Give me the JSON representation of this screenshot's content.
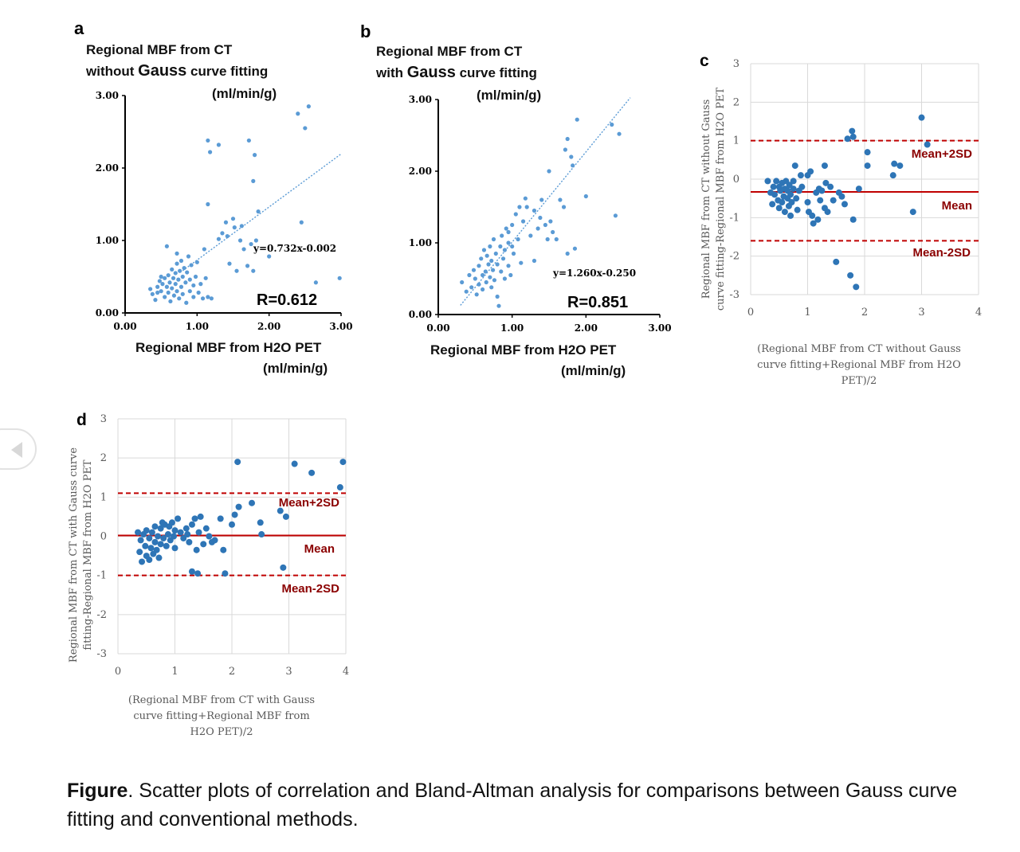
{
  "chart_data": [
    {
      "id": "a",
      "type": "scatter",
      "panel_label": "a",
      "title_lines": [
        "Regional MBF from CT",
        "without",
        "Gauss",
        "curve fitting",
        "(ml/min/g)"
      ],
      "xlabel_lines": [
        "Regional MBF from H2O PET",
        "(ml/min/g)"
      ],
      "xlim": [
        0,
        3
      ],
      "ylim": [
        0,
        3
      ],
      "xticks": [
        "0.00",
        "1.00",
        "2.00",
        "3.00"
      ],
      "yticks": [
        "0.00",
        "1.00",
        "2.00",
        "3.00"
      ],
      "equation": "y=0.732x-0.002",
      "r_label": "R=0.612",
      "trendline": {
        "slope": 0.732,
        "intercept": -0.002,
        "x_range": [
          0.8,
          3.0
        ]
      },
      "color": "#5b9bd5",
      "points": [
        [
          0.35,
          0.33
        ],
        [
          0.38,
          0.26
        ],
        [
          0.42,
          0.18
        ],
        [
          0.45,
          0.36
        ],
        [
          0.48,
          0.44
        ],
        [
          0.5,
          0.3
        ],
        [
          0.52,
          0.4
        ],
        [
          0.55,
          0.22
        ],
        [
          0.55,
          0.48
        ],
        [
          0.58,
          0.36
        ],
        [
          0.6,
          0.28
        ],
        [
          0.6,
          0.52
        ],
        [
          0.62,
          0.42
        ],
        [
          0.63,
          0.16
        ],
        [
          0.65,
          0.34
        ],
        [
          0.65,
          0.6
        ],
        [
          0.67,
          0.48
        ],
        [
          0.68,
          0.24
        ],
        [
          0.7,
          0.4
        ],
        [
          0.7,
          0.55
        ],
        [
          0.72,
          0.3
        ],
        [
          0.72,
          0.68
        ],
        [
          0.74,
          0.46
        ],
        [
          0.75,
          0.2
        ],
        [
          0.76,
          0.58
        ],
        [
          0.78,
          0.36
        ],
        [
          0.78,
          0.72
        ],
        [
          0.8,
          0.5
        ],
        [
          0.8,
          0.26
        ],
        [
          0.82,
          0.62
        ],
        [
          0.84,
          0.42
        ],
        [
          0.85,
          0.14
        ],
        [
          0.86,
          0.56
        ],
        [
          0.88,
          0.78
        ],
        [
          0.9,
          0.3
        ],
        [
          0.9,
          0.46
        ],
        [
          0.92,
          0.66
        ],
        [
          0.95,
          0.38
        ],
        [
          0.95,
          0.22
        ],
        [
          0.98,
          0.5
        ],
        [
          1.0,
          0.7
        ],
        [
          1.02,
          0.28
        ],
        [
          1.05,
          0.4
        ],
        [
          1.08,
          0.2
        ],
        [
          1.1,
          0.88
        ],
        [
          1.12,
          0.48
        ],
        [
          1.15,
          0.22
        ],
        [
          1.2,
          0.2
        ],
        [
          0.58,
          0.92
        ],
        [
          0.72,
          0.82
        ],
        [
          1.15,
          2.38
        ],
        [
          1.18,
          2.22
        ],
        [
          1.3,
          2.32
        ],
        [
          1.15,
          1.5
        ],
        [
          1.3,
          1.02
        ],
        [
          1.35,
          1.1
        ],
        [
          1.4,
          1.25
        ],
        [
          1.42,
          1.06
        ],
        [
          1.45,
          0.68
        ],
        [
          1.5,
          1.3
        ],
        [
          1.52,
          1.18
        ],
        [
          1.55,
          0.58
        ],
        [
          1.6,
          1.0
        ],
        [
          1.62,
          1.2
        ],
        [
          1.65,
          0.88
        ],
        [
          1.7,
          0.65
        ],
        [
          1.72,
          2.38
        ],
        [
          1.75,
          0.95
        ],
        [
          1.78,
          0.58
        ],
        [
          1.8,
          2.18
        ],
        [
          1.82,
          1.0
        ],
        [
          1.85,
          1.4
        ],
        [
          1.78,
          1.82
        ],
        [
          2.0,
          0.78
        ],
        [
          2.4,
          2.75
        ],
        [
          2.45,
          1.25
        ],
        [
          2.5,
          2.55
        ],
        [
          2.55,
          2.85
        ],
        [
          2.65,
          0.42
        ],
        [
          2.98,
          0.48
        ],
        [
          0.5,
          0.5
        ],
        [
          0.45,
          0.28
        ]
      ]
    },
    {
      "id": "b",
      "type": "scatter",
      "panel_label": "b",
      "title_lines": [
        "Regional MBF from CT",
        "with",
        "Gauss",
        "curve fitting",
        "(ml/min/g)"
      ],
      "xlabel_lines": [
        "Regional MBF from H2O PET",
        "(ml/min/g)"
      ],
      "xlim": [
        0,
        3
      ],
      "ylim": [
        0,
        3
      ],
      "xticks": [
        "0.00",
        "1.00",
        "2.00",
        "3.00"
      ],
      "yticks": [
        "0.00",
        "1.00",
        "2.00",
        "3.00"
      ],
      "equation": "y=1.260x-0.250",
      "r_label": "R=0.851",
      "trendline": {
        "slope": 1.26,
        "intercept": -0.25,
        "x_range": [
          0.3,
          2.6
        ]
      },
      "color": "#5b9bd5",
      "points": [
        [
          0.32,
          0.45
        ],
        [
          0.38,
          0.32
        ],
        [
          0.42,
          0.55
        ],
        [
          0.45,
          0.38
        ],
        [
          0.48,
          0.62
        ],
        [
          0.5,
          0.5
        ],
        [
          0.52,
          0.28
        ],
        [
          0.55,
          0.68
        ],
        [
          0.55,
          0.42
        ],
        [
          0.58,
          0.78
        ],
        [
          0.6,
          0.55
        ],
        [
          0.6,
          0.35
        ],
        [
          0.62,
          0.9
        ],
        [
          0.64,
          0.6
        ],
        [
          0.65,
          0.45
        ],
        [
          0.66,
          0.82
        ],
        [
          0.68,
          0.7
        ],
        [
          0.7,
          0.52
        ],
        [
          0.7,
          0.95
        ],
        [
          0.72,
          0.38
        ],
        [
          0.72,
          0.75
        ],
        [
          0.74,
          0.62
        ],
        [
          0.75,
          1.05
        ],
        [
          0.76,
          0.48
        ],
        [
          0.78,
          0.85
        ],
        [
          0.8,
          0.7
        ],
        [
          0.8,
          0.25
        ],
        [
          0.82,
          0.12
        ],
        [
          0.84,
          0.95
        ],
        [
          0.85,
          0.6
        ],
        [
          0.86,
          1.1
        ],
        [
          0.88,
          0.78
        ],
        [
          0.9,
          0.5
        ],
        [
          0.9,
          0.9
        ],
        [
          0.92,
          1.2
        ],
        [
          0.95,
          0.68
        ],
        [
          0.95,
          1.0
        ],
        [
          0.98,
          0.55
        ],
        [
          1.0,
          1.25
        ],
        [
          1.02,
          0.85
        ],
        [
          1.05,
          1.4
        ],
        [
          1.08,
          1.05
        ],
        [
          1.1,
          1.5
        ],
        [
          1.12,
          0.72
        ],
        [
          1.15,
          1.3
        ],
        [
          1.18,
          1.62
        ],
        [
          1.2,
          1.5
        ],
        [
          1.25,
          1.1
        ],
        [
          1.3,
          1.45
        ],
        [
          1.35,
          1.2
        ],
        [
          1.38,
          1.35
        ],
        [
          1.4,
          1.6
        ],
        [
          1.45,
          1.25
        ],
        [
          1.48,
          1.05
        ],
        [
          1.5,
          2.0
        ],
        [
          1.52,
          1.3
        ],
        [
          1.55,
          1.15
        ],
        [
          1.6,
          1.05
        ],
        [
          1.65,
          1.6
        ],
        [
          1.7,
          1.5
        ],
        [
          1.72,
          2.3
        ],
        [
          1.75,
          2.45
        ],
        [
          1.75,
          0.85
        ],
        [
          1.8,
          2.2
        ],
        [
          1.82,
          2.08
        ],
        [
          1.85,
          0.92
        ],
        [
          1.88,
          2.72
        ],
        [
          2.0,
          1.65
        ],
        [
          2.35,
          2.65
        ],
        [
          2.45,
          2.52
        ],
        [
          2.4,
          1.38
        ],
        [
          1.3,
          0.75
        ],
        [
          0.95,
          1.15
        ],
        [
          1.0,
          0.95
        ]
      ]
    },
    {
      "id": "c",
      "type": "scatter",
      "panel_label": "c",
      "ylabel_lines": [
        "Regional  MBF from CT without  Gauss",
        "curve fitting-Regional  MBF from H2O PET"
      ],
      "xlabel_lines": [
        "(Regional  MBF from CT without Gauss",
        "curve fitting+Regional  MBF from H2O",
        "PET)/2"
      ],
      "xlim": [
        0,
        4
      ],
      "ylim": [
        -3,
        3
      ],
      "xticks": [
        "0",
        "1",
        "2",
        "3",
        "4"
      ],
      "yticks": [
        "-3",
        "-2",
        "-1",
        "0",
        "1",
        "2",
        "3"
      ],
      "lines": [
        {
          "label": "Mean+2SD",
          "y": 1.0,
          "style": "dashed"
        },
        {
          "label": "Mean",
          "y": -0.33,
          "style": "solid"
        },
        {
          "label": "Mean-2SD",
          "y": -1.6,
          "style": "dashed"
        }
      ],
      "color": "#2e75b6",
      "line_color": "#c00000",
      "points": [
        [
          0.3,
          -0.05
        ],
        [
          0.35,
          -0.35
        ],
        [
          0.38,
          -0.65
        ],
        [
          0.4,
          -0.2
        ],
        [
          0.42,
          -0.4
        ],
        [
          0.45,
          -0.05
        ],
        [
          0.48,
          -0.55
        ],
        [
          0.5,
          -0.2
        ],
        [
          0.5,
          -0.75
        ],
        [
          0.52,
          -0.3
        ],
        [
          0.55,
          -0.1
        ],
        [
          0.55,
          -0.6
        ],
        [
          0.58,
          -0.45
        ],
        [
          0.6,
          -0.25
        ],
        [
          0.6,
          -0.85
        ],
        [
          0.62,
          -0.05
        ],
        [
          0.65,
          -0.5
        ],
        [
          0.65,
          -0.3
        ],
        [
          0.67,
          -0.7
        ],
        [
          0.68,
          -0.15
        ],
        [
          0.7,
          -0.4
        ],
        [
          0.7,
          -0.95
        ],
        [
          0.72,
          -0.6
        ],
        [
          0.75,
          -0.25
        ],
        [
          0.75,
          -0.05
        ],
        [
          0.78,
          0.35
        ],
        [
          0.8,
          -0.5
        ],
        [
          0.82,
          -0.8
        ],
        [
          0.85,
          -0.3
        ],
        [
          0.88,
          0.1
        ],
        [
          0.9,
          -0.2
        ],
        [
          1.0,
          0.1
        ],
        [
          1.0,
          -0.6
        ],
        [
          1.02,
          -0.85
        ],
        [
          1.05,
          0.2
        ],
        [
          1.08,
          -0.95
        ],
        [
          1.1,
          -1.15
        ],
        [
          1.15,
          -0.35
        ],
        [
          1.18,
          -1.05
        ],
        [
          1.2,
          -0.25
        ],
        [
          1.22,
          -0.55
        ],
        [
          1.25,
          -0.3
        ],
        [
          1.3,
          0.35
        ],
        [
          1.3,
          -0.75
        ],
        [
          1.32,
          -0.1
        ],
        [
          1.35,
          -0.85
        ],
        [
          1.4,
          -0.2
        ],
        [
          1.45,
          -0.55
        ],
        [
          1.5,
          -2.15
        ],
        [
          1.55,
          -0.35
        ],
        [
          1.6,
          -0.45
        ],
        [
          1.65,
          -0.65
        ],
        [
          1.7,
          1.05
        ],
        [
          1.75,
          -2.5
        ],
        [
          1.78,
          1.25
        ],
        [
          1.8,
          1.1
        ],
        [
          1.8,
          -1.05
        ],
        [
          1.85,
          -2.8
        ],
        [
          1.9,
          -0.25
        ],
        [
          2.05,
          0.7
        ],
        [
          2.05,
          0.35
        ],
        [
          2.5,
          0.1
        ],
        [
          2.52,
          0.4
        ],
        [
          2.62,
          0.35
        ],
        [
          2.85,
          -0.85
        ],
        [
          3.0,
          1.6
        ],
        [
          3.1,
          0.9
        ]
      ]
    },
    {
      "id": "d",
      "type": "scatter",
      "panel_label": "d",
      "ylabel_lines": [
        "Regional  MBF from CT with Gauss curve",
        "fitting-Regional  MBF from H2O PET"
      ],
      "xlabel_lines": [
        "(Regional  MBF from CT with Gauss",
        "curve fitting+Regional  MBF from",
        "H2O PET)/2"
      ],
      "xlim": [
        0,
        4
      ],
      "ylim": [
        -3,
        3
      ],
      "xticks": [
        "0",
        "1",
        "2",
        "3",
        "4"
      ],
      "yticks": [
        "-3",
        "-2",
        "-1",
        "0",
        "1",
        "2",
        "3"
      ],
      "lines": [
        {
          "label": "Mean+2SD",
          "y": 1.1,
          "style": "dashed"
        },
        {
          "label": "Mean",
          "y": 0.02,
          "style": "solid"
        },
        {
          "label": "Mean-2SD",
          "y": -1.0,
          "style": "dashed"
        }
      ],
      "color": "#2e75b6",
      "line_color": "#c00000",
      "points": [
        [
          0.35,
          0.1
        ],
        [
          0.38,
          -0.4
        ],
        [
          0.4,
          -0.1
        ],
        [
          0.42,
          -0.65
        ],
        [
          0.45,
          0.05
        ],
        [
          0.48,
          -0.25
        ],
        [
          0.5,
          -0.5
        ],
        [
          0.5,
          0.15
        ],
        [
          0.55,
          -0.05
        ],
        [
          0.55,
          -0.6
        ],
        [
          0.58,
          -0.3
        ],
        [
          0.6,
          0.1
        ],
        [
          0.62,
          -0.45
        ],
        [
          0.65,
          -0.15
        ],
        [
          0.65,
          0.25
        ],
        [
          0.68,
          -0.35
        ],
        [
          0.7,
          0.0
        ],
        [
          0.72,
          -0.55
        ],
        [
          0.75,
          0.2
        ],
        [
          0.75,
          -0.2
        ],
        [
          0.78,
          0.35
        ],
        [
          0.8,
          -0.05
        ],
        [
          0.82,
          0.3
        ],
        [
          0.85,
          -0.25
        ],
        [
          0.88,
          0.05
        ],
        [
          0.9,
          0.25
        ],
        [
          0.92,
          -0.1
        ],
        [
          0.95,
          0.35
        ],
        [
          0.98,
          0.0
        ],
        [
          1.0,
          0.15
        ],
        [
          1.0,
          -0.3
        ],
        [
          1.05,
          0.45
        ],
        [
          1.1,
          0.1
        ],
        [
          1.15,
          -0.05
        ],
        [
          1.2,
          0.2
        ],
        [
          1.22,
          0.05
        ],
        [
          1.25,
          -0.15
        ],
        [
          1.3,
          0.3
        ],
        [
          1.3,
          -0.9
        ],
        [
          1.35,
          0.45
        ],
        [
          1.38,
          -0.35
        ],
        [
          1.4,
          -0.95
        ],
        [
          1.42,
          0.1
        ],
        [
          1.45,
          0.5
        ],
        [
          1.5,
          -0.2
        ],
        [
          1.55,
          0.2
        ],
        [
          1.6,
          0.0
        ],
        [
          1.65,
          -0.15
        ],
        [
          1.7,
          -0.1
        ],
        [
          1.8,
          0.45
        ],
        [
          1.85,
          -0.35
        ],
        [
          1.88,
          -0.95
        ],
        [
          2.0,
          0.3
        ],
        [
          2.05,
          0.55
        ],
        [
          2.1,
          1.9
        ],
        [
          2.12,
          0.75
        ],
        [
          2.35,
          0.85
        ],
        [
          2.5,
          0.35
        ],
        [
          2.52,
          0.05
        ],
        [
          2.85,
          0.65
        ],
        [
          2.9,
          -0.8
        ],
        [
          2.95,
          0.5
        ],
        [
          3.1,
          1.85
        ],
        [
          3.4,
          1.62
        ],
        [
          3.9,
          1.25
        ],
        [
          3.95,
          1.9
        ]
      ]
    }
  ],
  "caption": {
    "bold": "Figure",
    "text": ". Scatter plots of correlation and Bland-Altman analysis for comparisons between Gauss curve fitting and conventional methods."
  }
}
